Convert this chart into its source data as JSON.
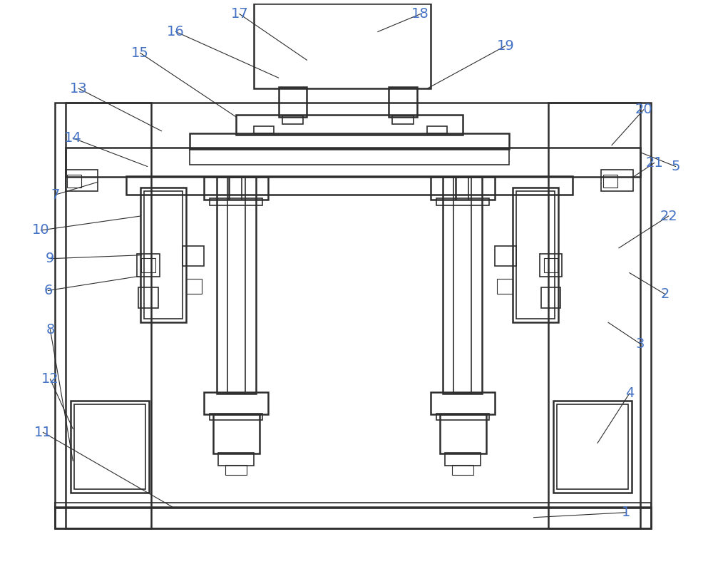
{
  "bg_color": "#ffffff",
  "line_color": "#2d2d2d",
  "label_color": "#4472c4",
  "lw_main": 1.8,
  "lw_med": 1.2,
  "lw_thin": 0.8,
  "fig_width": 10.0,
  "fig_height": 8.05
}
